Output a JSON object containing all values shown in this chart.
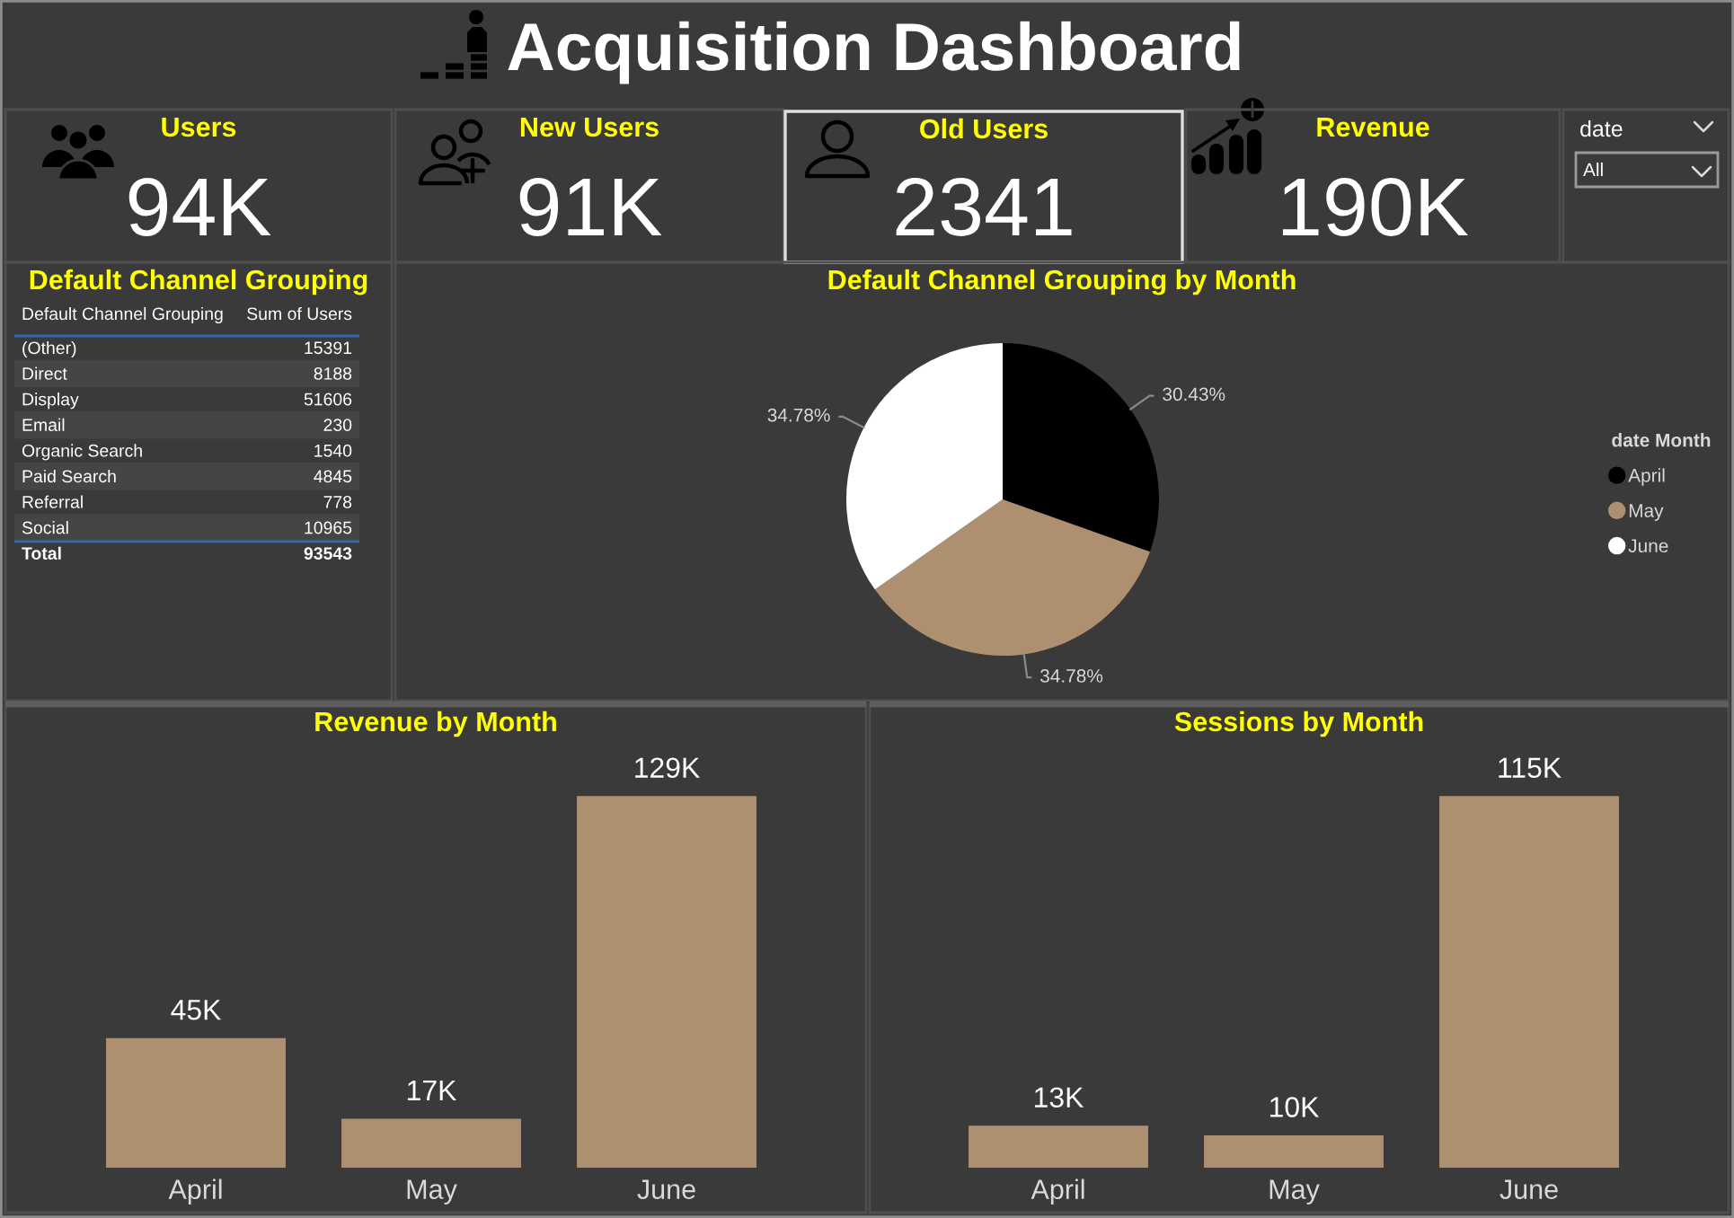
{
  "chart_data": [
    {
      "type": "other",
      "title": "Acquisition Dashboard"
    },
    {
      "type": "other",
      "title": "Users",
      "annotations": [
        "94K"
      ]
    },
    {
      "type": "other",
      "title": "New Users",
      "annotations": [
        "91K"
      ]
    },
    {
      "type": "other",
      "title": "Old Users",
      "annotations": [
        "2341"
      ]
    },
    {
      "type": "other",
      "title": "Revenue",
      "annotations": [
        "190K"
      ]
    },
    {
      "type": "other",
      "title": "date",
      "annotations": [
        "All"
      ]
    },
    {
      "type": "other",
      "title": "Default Channel Grouping",
      "categories": [
        "(Other)",
        "Direct",
        "Display",
        "Email",
        "Organic Search",
        "Paid Search",
        "Referral",
        "Social"
      ],
      "values": [
        15391,
        8188,
        51606,
        230,
        1540,
        4845,
        778,
        10965
      ],
      "data_labels": true,
      "annotations": [
        "Default Channel Grouping",
        "Sum of Users",
        "Total",
        "93543"
      ]
    },
    {
      "type": "pie",
      "title": "Default Channel Grouping by Month",
      "categories": [
        "April",
        "May",
        "June"
      ],
      "values": [
        30.43,
        34.78,
        34.78
      ],
      "colors": [
        "#000000",
        "#ae9070",
        "#ffffff"
      ],
      "value_labels": [
        "30.43%",
        "34.78%",
        "34.78%"
      ],
      "legend": "right",
      "legend_title": "date Month"
    },
    {
      "type": "bar",
      "title": "Revenue by Month",
      "categories": [
        "April",
        "May",
        "June"
      ],
      "values": [
        45,
        17,
        129
      ],
      "color": "#ae9070",
      "value_labels": [
        "45K",
        "17K",
        "129K"
      ]
    },
    {
      "type": "bar",
      "title": "Sessions by Month",
      "categories": [
        "April",
        "May",
        "June"
      ],
      "values": [
        13,
        10,
        115
      ],
      "color": "#ae9070",
      "value_labels": [
        "13K",
        "10K",
        "115K"
      ]
    }
  ]
}
